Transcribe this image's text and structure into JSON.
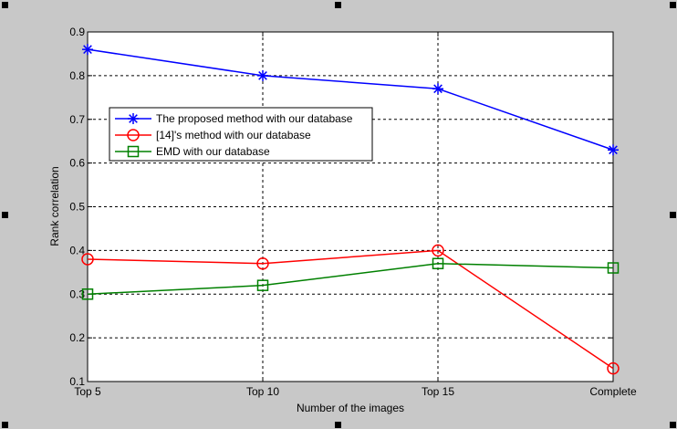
{
  "figure": {
    "background": "#c8c8c8",
    "handle_color": "#000000"
  },
  "chart_data": {
    "type": "line",
    "title": "",
    "xlabel": "Number of the images",
    "ylabel": "Rank correlation",
    "categories": [
      "Top 5",
      "Top 10",
      "Top 15",
      "Complete"
    ],
    "ylim": [
      0.1,
      0.9
    ],
    "yticks": [
      0.1,
      0.2,
      0.3,
      0.4,
      0.5,
      0.6,
      0.7,
      0.8,
      0.9
    ],
    "ytick_labels": [
      "0.1",
      "0.2",
      "0.3",
      "0.4",
      "0.5",
      "0.6",
      "0.7",
      "0.8",
      "0.9"
    ],
    "grid": true,
    "legend_position": "upper-left",
    "series": [
      {
        "name": "The proposed method with our database",
        "values": [
          0.86,
          0.8,
          0.77,
          0.63
        ],
        "color": "#0000ff",
        "marker": "asterisk"
      },
      {
        "name": "[14]'s method with our database",
        "values": [
          0.38,
          0.37,
          0.4,
          0.13
        ],
        "color": "#ff0000",
        "marker": "circle"
      },
      {
        "name": "EMD with our database",
        "values": [
          0.3,
          0.32,
          0.37,
          0.36
        ],
        "color": "#008000",
        "marker": "square"
      }
    ]
  }
}
